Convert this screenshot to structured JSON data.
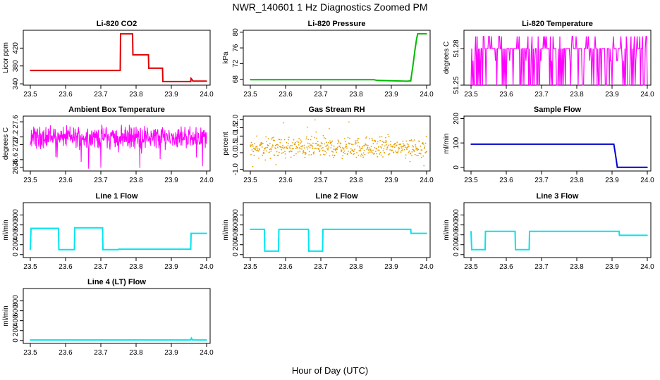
{
  "figure": {
    "title": "NWR_140601  1 Hz Diagnostics Zoomed PM",
    "xlabel": "Hour of Day (UTC)"
  },
  "chart_data": [
    {
      "type": "line",
      "title": "Li-820 CO2",
      "ylabel": "Licor ppm",
      "color": "#dd0000",
      "xlim": [
        23.48,
        24.01
      ],
      "ylim": [
        337,
        460
      ],
      "xticks": [
        "23.5",
        "23.6",
        "23.7",
        "23.8",
        "23.9",
        "24.0"
      ],
      "yticks": [
        "340",
        "380",
        "420"
      ],
      "x": [
        23.5,
        23.755,
        23.756,
        23.79,
        23.791,
        23.835,
        23.836,
        23.875,
        23.876,
        23.955,
        23.956,
        23.96,
        23.961,
        24.0
      ],
      "y": [
        370,
        370,
        452,
        452,
        405,
        405,
        375,
        375,
        345,
        345,
        352,
        348,
        346,
        346
      ]
    },
    {
      "type": "line",
      "title": "Li-820 Pressure",
      "ylabel": "kPa",
      "color": "#00bb00",
      "xlim": [
        23.48,
        24.01
      ],
      "ylim": [
        66.5,
        80.5
      ],
      "xticks": [
        "23.5",
        "23.6",
        "23.7",
        "23.8",
        "23.9",
        "24.0"
      ],
      "yticks": [
        "68",
        "72",
        "76",
        "80"
      ],
      "x": [
        23.5,
        23.85,
        23.86,
        23.945,
        23.955,
        23.962,
        23.967,
        23.972,
        23.975,
        24.0
      ],
      "y": [
        67.9,
        67.9,
        67.7,
        67.5,
        67.6,
        72,
        75.5,
        78.5,
        79.6,
        79.6
      ]
    },
    {
      "type": "line",
      "title": "Li-820 Temperature",
      "ylabel": "degrees C",
      "color": "#ff00ff",
      "xlim": [
        23.48,
        24.01
      ],
      "ylim": [
        51.25,
        51.295
      ],
      "xticks": [
        "23.5",
        "23.6",
        "23.7",
        "23.8",
        "23.9",
        "24.0"
      ],
      "yticks": [
        "51.25",
        "51.28"
      ],
      "noise_level_values": [
        51.25,
        51.27,
        51.28,
        51.29
      ]
    },
    {
      "type": "line",
      "title": "Ambient Box Temperature",
      "ylabel": "degrees C",
      "color": "#ff00ff",
      "xlim": [
        23.48,
        24.01
      ],
      "ylim": [
        26.3,
        27.75
      ],
      "xticks": [
        "23.5",
        "23.6",
        "23.7",
        "23.8",
        "23.9",
        "24.0"
      ],
      "yticks": [
        "26.4",
        "26.6",
        "27.0",
        "27.2",
        "27.6"
      ],
      "center": 27.2,
      "noise_range": [
        26.35,
        27.65
      ]
    },
    {
      "type": "scatter",
      "title": "Gas Stream RH",
      "ylabel": "percent",
      "color": "#e6a000",
      "xlim": [
        23.48,
        24.01
      ],
      "ylim": [
        -1.1,
        2.2
      ],
      "xticks": [
        "23.5",
        "23.6",
        "23.7",
        "23.8",
        "23.9",
        "24.0"
      ],
      "yticks": [
        "-1.0",
        "0.0",
        "0.5",
        "1.0",
        "1.5",
        "2.0"
      ],
      "center": 0.3,
      "noise_range": [
        -0.9,
        2.1
      ]
    },
    {
      "type": "line",
      "title": "Sample Flow",
      "ylabel": "ml/min",
      "color": "#0000cc",
      "xlim": [
        23.48,
        24.01
      ],
      "ylim": [
        -15,
        210
      ],
      "xticks": [
        "23.5",
        "23.6",
        "23.7",
        "23.8",
        "23.9",
        "24.0"
      ],
      "yticks": [
        "0",
        "100",
        "200"
      ],
      "x": [
        23.5,
        23.905,
        23.91,
        23.915,
        24.0
      ],
      "y": [
        95,
        95,
        50,
        0,
        0
      ]
    },
    {
      "type": "line",
      "title": "Line 1 Flow",
      "ylabel": "ml/min",
      "color": "#00e5ee",
      "xlim": [
        23.48,
        24.01
      ],
      "ylim": [
        -60,
        1050
      ],
      "xticks": [
        "23.5",
        "23.6",
        "23.7",
        "23.8",
        "23.9",
        "24.0"
      ],
      "yticks": [
        "0",
        "200",
        "400",
        "600",
        "800"
      ],
      "x": [
        23.5,
        23.502,
        23.58,
        23.581,
        23.625,
        23.626,
        23.705,
        23.706,
        23.75,
        23.751,
        23.955,
        23.956,
        24.0
      ],
      "y": [
        100,
        530,
        530,
        100,
        100,
        540,
        540,
        100,
        100,
        110,
        110,
        430,
        430
      ]
    },
    {
      "type": "line",
      "title": "Line 2 Flow",
      "ylabel": "ml/min",
      "color": "#00e5ee",
      "xlim": [
        23.48,
        24.01
      ],
      "ylim": [
        -60,
        1050
      ],
      "xticks": [
        "23.5",
        "23.6",
        "23.7",
        "23.8",
        "23.9",
        "24.0"
      ],
      "yticks": [
        "0",
        "200",
        "400",
        "600",
        "800"
      ],
      "x": [
        23.5,
        23.54,
        23.541,
        23.58,
        23.581,
        23.665,
        23.666,
        23.705,
        23.706,
        23.955,
        23.956,
        24.0
      ],
      "y": [
        510,
        510,
        70,
        70,
        510,
        510,
        70,
        70,
        510,
        510,
        430,
        430
      ]
    },
    {
      "type": "line",
      "title": "Line 3 Flow",
      "ylabel": "ml/min",
      "color": "#00e5ee",
      "xlim": [
        23.48,
        24.01
      ],
      "ylim": [
        -60,
        1050
      ],
      "xticks": [
        "23.5",
        "23.6",
        "23.7",
        "23.8",
        "23.9",
        "24.0"
      ],
      "yticks": [
        "0",
        "200",
        "400",
        "600",
        "800"
      ],
      "x": [
        23.5,
        23.502,
        23.54,
        23.541,
        23.625,
        23.626,
        23.665,
        23.666,
        23.92,
        23.921,
        24.0
      ],
      "y": [
        470,
        100,
        100,
        470,
        470,
        100,
        100,
        470,
        470,
        390,
        390
      ]
    },
    {
      "type": "line",
      "title": "Line 4 (LT) Flow",
      "ylabel": "ml/min",
      "color": "#00e5ee",
      "xlim": [
        23.48,
        24.01
      ],
      "ylim": [
        -60,
        1050
      ],
      "xticks": [
        "23.5",
        "23.6",
        "23.7",
        "23.8",
        "23.9",
        "24.0"
      ],
      "yticks": [
        "0",
        "200",
        "400",
        "600",
        "800"
      ],
      "x": [
        23.5,
        23.955,
        23.957,
        23.96,
        24.0
      ],
      "y": [
        10,
        10,
        45,
        10,
        10
      ]
    }
  ]
}
